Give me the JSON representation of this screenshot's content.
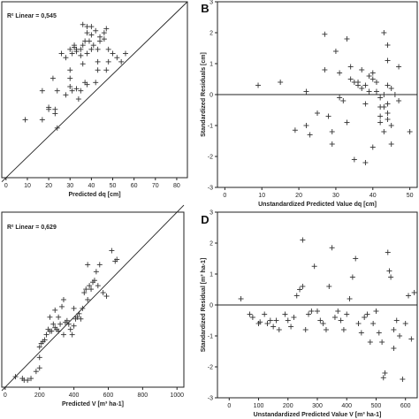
{
  "chart_data": [
    {
      "id": "A",
      "type": "scatter",
      "panel_label": "",
      "annotation": "R² Linear = 0,545",
      "xlabel": "Predicted dq [cm]",
      "ylabel": "",
      "xlim": [
        -2,
        85
      ],
      "ylim": [
        0,
        85
      ],
      "xticks": [
        0,
        10,
        20,
        30,
        40,
        50,
        60,
        70,
        80
      ],
      "yticks": [],
      "reference": "fit",
      "fit": [
        [
          -2,
          -2
        ],
        [
          85,
          85
        ]
      ],
      "points": [
        [
          9,
          28
        ],
        [
          17,
          42
        ],
        [
          22,
          48
        ],
        [
          23,
          33
        ],
        [
          23,
          31
        ],
        [
          24,
          42
        ],
        [
          28,
          40
        ],
        [
          30,
          48
        ],
        [
          30,
          44
        ],
        [
          31,
          42
        ],
        [
          33,
          43
        ],
        [
          34,
          38
        ],
        [
          35,
          42
        ],
        [
          36,
          55
        ],
        [
          38,
          45
        ],
        [
          38,
          60
        ],
        [
          37,
          46
        ],
        [
          42,
          46
        ],
        [
          24,
          24
        ],
        [
          43,
          56
        ],
        [
          43,
          52
        ],
        [
          40,
          62
        ],
        [
          41,
          64
        ],
        [
          43,
          62
        ],
        [
          44,
          66
        ],
        [
          46,
          67
        ],
        [
          48,
          62
        ],
        [
          47,
          72
        ],
        [
          46,
          70
        ],
        [
          44,
          68
        ],
        [
          42,
          71
        ],
        [
          40,
          69
        ],
        [
          39,
          66
        ],
        [
          38,
          70
        ],
        [
          37,
          66
        ],
        [
          36,
          64
        ],
        [
          35,
          62
        ],
        [
          33,
          62
        ],
        [
          32,
          63
        ],
        [
          31,
          60
        ],
        [
          30,
          62
        ],
        [
          28,
          58
        ],
        [
          26,
          60
        ],
        [
          32,
          64
        ],
        [
          30,
          52
        ],
        [
          48,
          56
        ],
        [
          50,
          60
        ],
        [
          52,
          58
        ],
        [
          54,
          56
        ],
        [
          56,
          60
        ],
        [
          47,
          52
        ],
        [
          38,
          73
        ],
        [
          36,
          74
        ],
        [
          35,
          59
        ],
        [
          33,
          61
        ],
        [
          40,
          73
        ],
        [
          20,
          33
        ],
        [
          20,
          34
        ],
        [
          17,
          28
        ]
      ]
    },
    {
      "id": "B",
      "type": "scatter",
      "panel_label": "B",
      "annotation": "",
      "xlabel": "Unstandardized Predicted Value dq [cm]",
      "ylabel": "Standardized Residuals [cm]",
      "xlim": [
        -2,
        52
      ],
      "ylim": [
        -3,
        3
      ],
      "xticks": [
        0,
        10,
        20,
        30,
        40,
        50
      ],
      "yticks": [
        -3,
        -2,
        -1,
        0,
        1,
        2,
        3
      ],
      "reference": "zero",
      "points": [
        [
          9,
          0.3
        ],
        [
          15,
          0.4
        ],
        [
          19,
          -1.15
        ],
        [
          22,
          0.1
        ],
        [
          22,
          -1.0
        ],
        [
          23,
          -1.3
        ],
        [
          25,
          -0.6
        ],
        [
          27,
          1.95
        ],
        [
          27,
          0.8
        ],
        [
          28,
          -0.7
        ],
        [
          29,
          -1.2
        ],
        [
          29,
          -1.6
        ],
        [
          30,
          1.4
        ],
        [
          31,
          0.7
        ],
        [
          31,
          -0.1
        ],
        [
          33,
          1.8
        ],
        [
          34,
          0.9
        ],
        [
          34,
          0.5
        ],
        [
          35,
          0.4
        ],
        [
          35,
          -2.1
        ],
        [
          36,
          0.4
        ],
        [
          36,
          0.3
        ],
        [
          37,
          0.8
        ],
        [
          37,
          0.2
        ],
        [
          38,
          0.3
        ],
        [
          38,
          -0.3
        ],
        [
          38,
          -2.2
        ],
        [
          39,
          0.6
        ],
        [
          39,
          0.1
        ],
        [
          40,
          -1.7
        ],
        [
          40,
          0.7
        ],
        [
          40,
          0.5
        ],
        [
          41,
          0.4
        ],
        [
          41,
          0.1
        ],
        [
          42,
          -0.1
        ],
        [
          42,
          -0.4
        ],
        [
          42,
          -0.7
        ],
        [
          42,
          -0.9
        ],
        [
          43,
          -1.2
        ],
        [
          43,
          0.0
        ],
        [
          43,
          -0.4
        ],
        [
          43,
          2.0
        ],
        [
          44,
          1.6
        ],
        [
          44,
          1.1
        ],
        [
          44,
          0.3
        ],
        [
          44,
          -0.3
        ],
        [
          44,
          -0.6
        ],
        [
          44,
          -0.8
        ],
        [
          45,
          0.2
        ],
        [
          45,
          -1.0
        ],
        [
          45,
          -1.6
        ],
        [
          46,
          0.0
        ],
        [
          47,
          0.9
        ],
        [
          47,
          -0.2
        ],
        [
          50,
          -1.2
        ],
        [
          32,
          -0.2
        ],
        [
          33,
          -0.9
        ]
      ]
    },
    {
      "id": "C",
      "type": "scatter",
      "panel_label": "",
      "annotation": "R² Linear = 0,629",
      "xlabel": "Predicted V [m³ ha-1]",
      "ylabel": "",
      "xlim": [
        -20,
        1040
      ],
      "ylim": [
        0,
        1000
      ],
      "xticks": [
        0,
        200,
        400,
        600,
        800,
        1000
      ],
      "yticks": [],
      "reference": "fit",
      "fit": [
        [
          -20,
          -20
        ],
        [
          1040,
          1040
        ]
      ],
      "points": [
        [
          60,
          60
        ],
        [
          100,
          50
        ],
        [
          110,
          40
        ],
        [
          130,
          40
        ],
        [
          150,
          50
        ],
        [
          180,
          90
        ],
        [
          200,
          110
        ],
        [
          200,
          230
        ],
        [
          210,
          250
        ],
        [
          220,
          260
        ],
        [
          230,
          270
        ],
        [
          240,
          300
        ],
        [
          250,
          330
        ],
        [
          260,
          320
        ],
        [
          260,
          400
        ],
        [
          270,
          320
        ],
        [
          280,
          360
        ],
        [
          290,
          340
        ],
        [
          300,
          330
        ],
        [
          310,
          320
        ],
        [
          310,
          400
        ],
        [
          320,
          360
        ],
        [
          330,
          460
        ],
        [
          340,
          300
        ],
        [
          350,
          370
        ],
        [
          360,
          380
        ],
        [
          370,
          360
        ],
        [
          380,
          330
        ],
        [
          390,
          300
        ],
        [
          400,
          350
        ],
        [
          400,
          450
        ],
        [
          410,
          390
        ],
        [
          420,
          400
        ],
        [
          430,
          420
        ],
        [
          440,
          390
        ],
        [
          450,
          450
        ],
        [
          460,
          540
        ],
        [
          470,
          560
        ],
        [
          480,
          500
        ],
        [
          490,
          580
        ],
        [
          500,
          560
        ],
        [
          510,
          600
        ],
        [
          520,
          610
        ],
        [
          530,
          660
        ],
        [
          540,
          580
        ],
        [
          550,
          700
        ],
        [
          570,
          540
        ],
        [
          590,
          520
        ],
        [
          620,
          780
        ],
        [
          640,
          720
        ],
        [
          650,
          730
        ],
        [
          480,
          700
        ],
        [
          290,
          440
        ],
        [
          340,
          500
        ],
        [
          200,
          170
        ]
      ]
    },
    {
      "id": "D",
      "type": "scatter",
      "panel_label": "D",
      "annotation": "",
      "xlabel": "Unstandardized Predicted Value V [m³ ha-1]",
      "ylabel": "Standardized Residual [m³ ha-1]",
      "xlim": [
        -40,
        640
      ],
      "ylim": [
        -3,
        3
      ],
      "xticks": [
        0,
        100,
        200,
        300,
        400,
        500,
        600
      ],
      "yticks": [
        -3,
        -2,
        -1,
        0,
        1,
        2,
        3
      ],
      "reference": "zero",
      "points": [
        [
          40,
          0.2
        ],
        [
          70,
          -0.3
        ],
        [
          80,
          -0.4
        ],
        [
          100,
          -0.6
        ],
        [
          105,
          -0.55
        ],
        [
          120,
          -0.3
        ],
        [
          130,
          -0.6
        ],
        [
          140,
          -0.5
        ],
        [
          150,
          -0.7
        ],
        [
          160,
          -0.5
        ],
        [
          170,
          -0.8
        ],
        [
          190,
          -0.3
        ],
        [
          200,
          -0.5
        ],
        [
          210,
          -0.7
        ],
        [
          220,
          -0.4
        ],
        [
          230,
          0.3
        ],
        [
          240,
          0.5
        ],
        [
          250,
          0.6
        ],
        [
          250,
          2.1
        ],
        [
          260,
          -0.8
        ],
        [
          270,
          -0.3
        ],
        [
          280,
          -0.2
        ],
        [
          290,
          1.25
        ],
        [
          300,
          -0.2
        ],
        [
          310,
          -0.5
        ],
        [
          320,
          -0.6
        ],
        [
          330,
          -0.8
        ],
        [
          340,
          0.6
        ],
        [
          350,
          1.85
        ],
        [
          360,
          -0.4
        ],
        [
          370,
          -0.2
        ],
        [
          380,
          -0.5
        ],
        [
          390,
          -0.8
        ],
        [
          400,
          -0.3
        ],
        [
          410,
          0.2
        ],
        [
          420,
          0.9
        ],
        [
          430,
          1.5
        ],
        [
          440,
          -0.6
        ],
        [
          450,
          -0.9
        ],
        [
          460,
          -0.4
        ],
        [
          470,
          -0.3
        ],
        [
          480,
          -1.2
        ],
        [
          490,
          -0.6
        ],
        [
          500,
          -0.2
        ],
        [
          510,
          -0.9
        ],
        [
          520,
          -1.2
        ],
        [
          530,
          -2.2
        ],
        [
          540,
          1.7
        ],
        [
          545,
          1.1
        ],
        [
          550,
          0.9
        ],
        [
          560,
          -1.4
        ],
        [
          570,
          -0.5
        ],
        [
          580,
          -1.0
        ],
        [
          590,
          -2.4
        ],
        [
          600,
          -0.6
        ],
        [
          610,
          0.3
        ],
        [
          620,
          -1.1
        ],
        [
          630,
          0.4
        ],
        [
          525,
          -2.35
        ],
        [
          560,
          -0.8
        ]
      ]
    }
  ]
}
